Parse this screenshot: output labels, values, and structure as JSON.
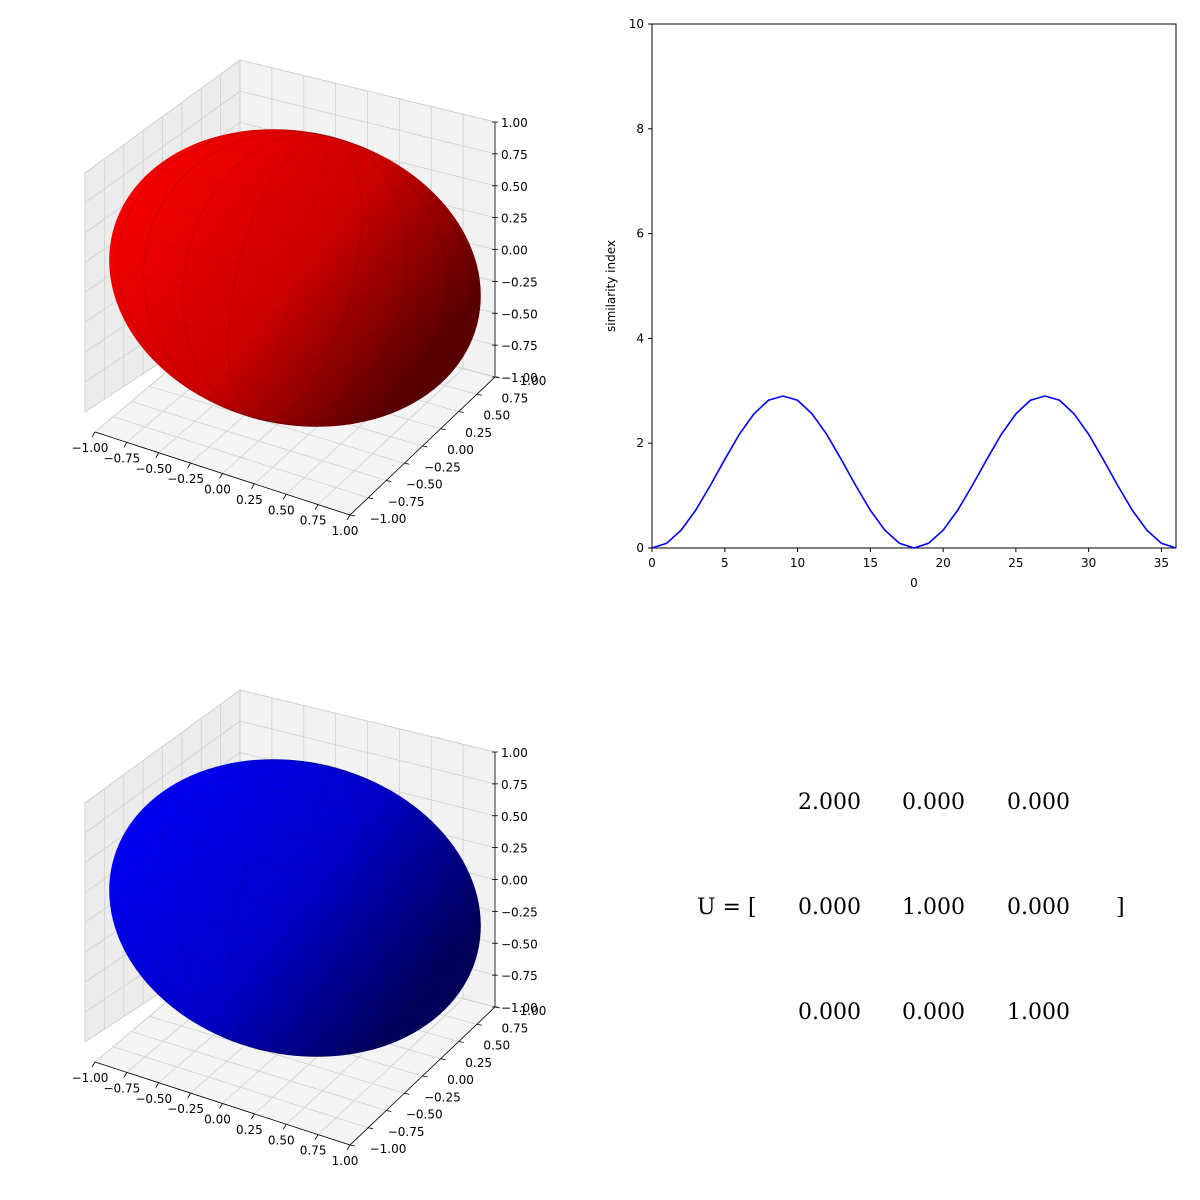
{
  "colors": {
    "ellipsoid_1": "#ff0000",
    "ellipsoid_2": "#0000ff",
    "line": "#0000ff",
    "pane": "#f2f2f2",
    "grid": "#d0d0d0"
  },
  "chart_data": [
    {
      "type": "surface3d",
      "surface": "ellipsoid",
      "color": "#ff0000",
      "axes": {
        "x_ticks": [
          "−1.00",
          "−0.75",
          "−0.50",
          "−0.25",
          "0.00",
          "0.25",
          "0.50",
          "0.75",
          "1.00"
        ],
        "y_ticks": [
          "−1.00",
          "−0.75",
          "−0.50",
          "−0.25",
          "0.00",
          "0.25",
          "0.50",
          "0.75",
          "1.00"
        ],
        "z_ticks": [
          "1.00",
          "0.75",
          "0.50",
          "0.25",
          "0.00",
          "−0.25",
          "−0.50",
          "−0.75",
          "−1.00"
        ],
        "xlim": [
          -1,
          1
        ],
        "ylim": [
          -1,
          1
        ],
        "zlim": [
          -1,
          1
        ]
      },
      "grid": true
    },
    {
      "type": "line",
      "x": [
        0,
        1,
        2,
        3,
        4,
        5,
        6,
        7,
        8,
        9,
        10,
        11,
        12,
        13,
        14,
        15,
        16,
        17,
        18,
        19,
        20,
        21,
        22,
        23,
        24,
        25,
        26,
        27,
        28,
        29,
        30,
        31,
        32,
        33,
        34,
        35,
        36
      ],
      "series": [
        {
          "values": [
            0.0,
            0.09,
            0.34,
            0.72,
            1.19,
            1.69,
            2.17,
            2.56,
            2.82,
            2.9,
            2.82,
            2.56,
            2.17,
            1.69,
            1.19,
            0.72,
            0.34,
            0.09,
            0.0,
            0.09,
            0.34,
            0.72,
            1.19,
            1.69,
            2.17,
            2.56,
            2.82,
            2.9,
            2.82,
            2.56,
            2.17,
            1.69,
            1.19,
            0.72,
            0.34,
            0.09,
            0.0
          ],
          "color": "#0000ff"
        }
      ],
      "xlabel": "0",
      "ylabel": "similarity index",
      "xlim": [
        0,
        36
      ],
      "ylim": [
        0,
        10
      ],
      "x_ticks": [
        "0",
        "5",
        "10",
        "15",
        "20",
        "25",
        "30",
        "35"
      ],
      "y_ticks": [
        "0",
        "2",
        "4",
        "6",
        "8",
        "10"
      ],
      "grid": false
    },
    {
      "type": "surface3d",
      "surface": "ellipsoid",
      "color": "#0000ff",
      "axes": {
        "x_ticks": [
          "−1.00",
          "−0.75",
          "−0.50",
          "−0.25",
          "0.00",
          "0.25",
          "0.50",
          "0.75",
          "1.00"
        ],
        "y_ticks": [
          "−1.00",
          "−0.75",
          "−0.50",
          "−0.25",
          "0.00",
          "0.25",
          "0.50",
          "0.75",
          "1.00"
        ],
        "z_ticks": [
          "1.00",
          "0.75",
          "0.50",
          "0.25",
          "0.00",
          "−0.25",
          "−0.50",
          "−0.75",
          "−1.00"
        ],
        "xlim": [
          -1,
          1
        ],
        "ylim": [
          -1,
          1
        ],
        "zlim": [
          -1,
          1
        ]
      },
      "grid": true
    },
    {
      "type": "table",
      "label": "U = [",
      "close": "]",
      "rows": [
        [
          "2.000",
          "0.000",
          "0.000"
        ],
        [
          "0.000",
          "1.000",
          "0.000"
        ],
        [
          "0.000",
          "0.000",
          "1.000"
        ]
      ]
    }
  ]
}
